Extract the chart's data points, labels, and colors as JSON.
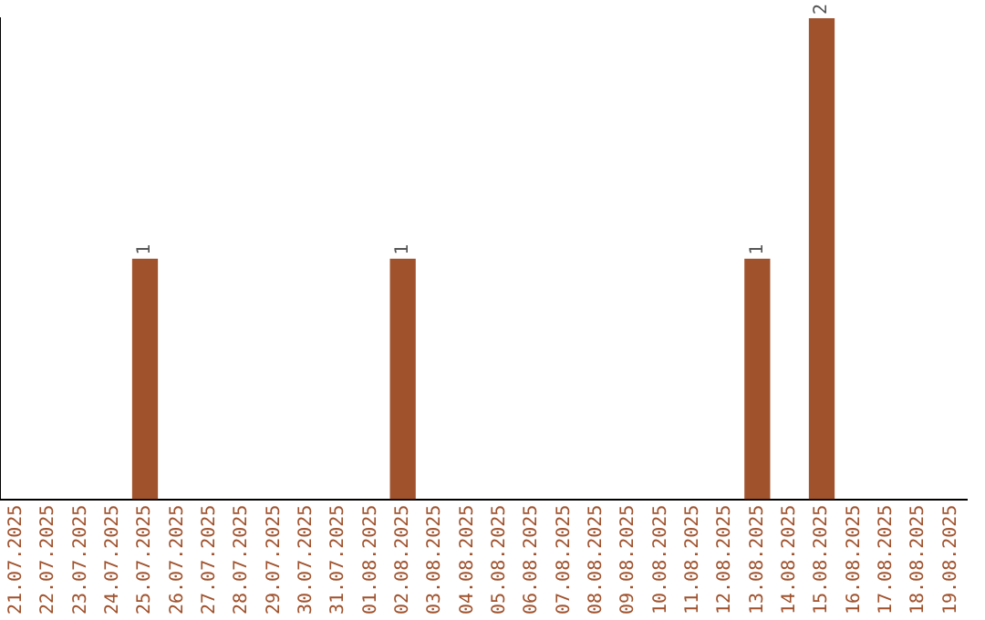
{
  "chart_data": {
    "type": "bar",
    "categories": [
      "21.07.2025",
      "22.07.2025",
      "23.07.2025",
      "24.07.2025",
      "25.07.2025",
      "26.07.2025",
      "27.07.2025",
      "28.07.2025",
      "29.07.2025",
      "30.07.2025",
      "31.07.2025",
      "01.08.2025",
      "02.08.2025",
      "03.08.2025",
      "04.08.2025",
      "05.08.2025",
      "06.08.2025",
      "07.08.2025",
      "08.08.2025",
      "09.08.2025",
      "10.08.2025",
      "11.08.2025",
      "12.08.2025",
      "13.08.2025",
      "14.08.2025",
      "15.08.2025",
      "16.08.2025",
      "17.08.2025",
      "18.08.2025",
      "19.08.2025"
    ],
    "values": [
      0,
      0,
      0,
      0,
      1,
      0,
      0,
      0,
      0,
      0,
      0,
      0,
      1,
      0,
      0,
      0,
      0,
      0,
      0,
      0,
      0,
      0,
      0,
      1,
      0,
      2,
      0,
      0,
      0,
      0
    ],
    "value_labels": [
      null,
      null,
      null,
      null,
      "1",
      null,
      null,
      null,
      null,
      null,
      null,
      null,
      "1",
      null,
      null,
      null,
      null,
      null,
      null,
      null,
      null,
      null,
      null,
      "1",
      null,
      "2",
      null,
      null,
      null,
      null
    ],
    "color": "#a0522d",
    "grid": false,
    "legend": false
  }
}
